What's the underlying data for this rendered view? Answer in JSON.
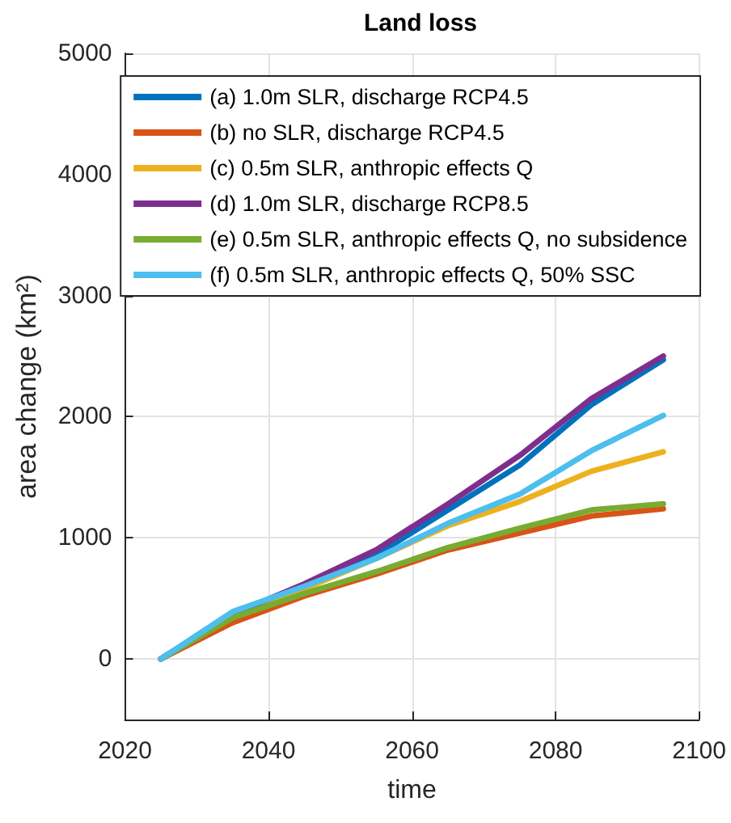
{
  "chart_data": {
    "type": "line",
    "title": "Land loss",
    "xlabel": "time",
    "ylabel": "area change (km²)",
    "x": [
      2025,
      2035,
      2045,
      2055,
      2065,
      2075,
      2085,
      2095
    ],
    "series": [
      {
        "name": "(a) 1.0m SLR, discharge RCP4.5",
        "color": "#0072bd",
        "values": [
          0,
          370,
          600,
          860,
          1230,
          1600,
          2100,
          2470
        ]
      },
      {
        "name": "(b) no SLR, discharge RCP4.5",
        "color": "#d95319",
        "values": [
          0,
          300,
          520,
          700,
          900,
          1040,
          1180,
          1240
        ]
      },
      {
        "name": "(c) 0.5m SLR, anthropic effects Q",
        "color": "#edb120",
        "values": [
          0,
          350,
          580,
          830,
          1100,
          1300,
          1550,
          1710
        ]
      },
      {
        "name": "(d) 1.0m SLR, discharge RCP8.5",
        "color": "#7e2f8e",
        "values": [
          0,
          370,
          620,
          900,
          1280,
          1680,
          2150,
          2500
        ]
      },
      {
        "name": "(e) 0.5m SLR, anthropic effects Q, no subsidence",
        "color": "#77ac30",
        "values": [
          0,
          340,
          540,
          720,
          920,
          1080,
          1230,
          1280
        ]
      },
      {
        "name": "(f) 0.5m SLR, anthropic effects Q, 50% SSC",
        "color": "#4dbeee",
        "values": [
          0,
          390,
          600,
          830,
          1120,
          1360,
          1720,
          2010
        ]
      }
    ],
    "xlim": [
      2020,
      2100
    ],
    "xticks": [
      2020,
      2040,
      2060,
      2080,
      2100
    ],
    "ylim": [
      -500,
      5000
    ],
    "yticks": [
      0,
      1000,
      2000,
      3000,
      4000,
      5000
    ],
    "grid": true,
    "legend": "top right",
    "marker": "none",
    "line_style": "solid"
  }
}
